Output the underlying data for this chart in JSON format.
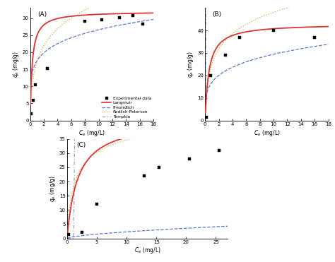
{
  "panels": [
    {
      "label": "(A)",
      "xlim": [
        0,
        18
      ],
      "ylim": [
        0,
        33
      ],
      "xticks": [
        0,
        2,
        4,
        6,
        8,
        10,
        12,
        14,
        16,
        18
      ],
      "yticks": [
        0,
        5,
        10,
        15,
        20,
        25,
        30
      ],
      "xlabel": "$C_e$ (mg/L)",
      "ylabel": "$q_e$ (mg/g)",
      "exp_x": [
        0.15,
        0.4,
        0.8,
        2.5,
        8.0,
        10.5,
        13.0,
        15.0,
        16.5
      ],
      "exp_y": [
        2.0,
        6.0,
        10.5,
        15.2,
        29.0,
        29.5,
        30.2,
        30.8,
        28.2
      ],
      "langmuir_params": {
        "qm": 32.0,
        "KL": 3.5
      },
      "freundlich_params": {
        "Kf": 17.5,
        "n": 5.5
      },
      "redlich_params": {
        "KR": 90.0,
        "aR": 4.2,
        "beta": 0.78
      },
      "tempkin_params": {
        "AT": 20.0,
        "BT": 180.0
      }
    },
    {
      "label": "(B)",
      "xlim": [
        0,
        18
      ],
      "ylim": [
        0,
        50
      ],
      "xticks": [
        0,
        2,
        4,
        6,
        8,
        10,
        12,
        14,
        16,
        18
      ],
      "yticks": [
        0,
        10,
        20,
        30,
        40
      ],
      "xlabel": "$C_e$ (mg/L)",
      "ylabel": "$q_e$ (mg/g)",
      "exp_x": [
        0.2,
        0.8,
        3.0,
        5.0,
        10.0,
        16.0
      ],
      "exp_y": [
        1.5,
        20.0,
        29.0,
        37.0,
        40.0,
        37.0
      ],
      "langmuir_params": {
        "qm": 43.0,
        "KL": 1.8
      },
      "freundlich_params": {
        "Kf": 17.0,
        "n": 4.2
      },
      "redlich_params": {
        "KR": 100.0,
        "aR": 3.0,
        "beta": 0.82
      },
      "tempkin_params": {
        "AT": 12.0,
        "BT": 270.0
      }
    },
    {
      "label": "(C)",
      "xlim": [
        0,
        27
      ],
      "ylim": [
        0,
        35
      ],
      "xticks": [
        0,
        5,
        10,
        15,
        20,
        25
      ],
      "yticks": [
        0,
        5,
        10,
        15,
        20,
        25,
        30,
        35
      ],
      "xlabel": "$C_e$ (mg/L)",
      "ylabel": "$q_e$ (mg/g)",
      "exp_x": [
        0.3,
        2.5,
        5.0,
        13.0,
        15.5,
        20.5,
        25.5
      ],
      "exp_y": [
        1.5,
        2.2,
        12.0,
        22.0,
        25.0,
        28.0,
        31.0
      ],
      "langmuir_params": {
        "qm": 42.0,
        "KL": 0.55
      },
      "freundlich_params": {
        "Kf": 0.55,
        "n": 1.6
      },
      "redlich_params": {
        "KR": 38.0,
        "aR": 1.2,
        "beta": 0.92
      },
      "tempkin_params": {
        "AT": 0.9,
        "BT": 260.0
      }
    }
  ],
  "colors": {
    "langmuir": "#d93535",
    "freundlich": "#5878cc",
    "redlich": "#b8b840",
    "tempkin": "#a0a8b8"
  },
  "legend_labels": [
    "Experimental data",
    "Langmuir",
    "Freundlich",
    "Redlich-Peterson",
    "Tempkin"
  ],
  "legend_panel": 0
}
